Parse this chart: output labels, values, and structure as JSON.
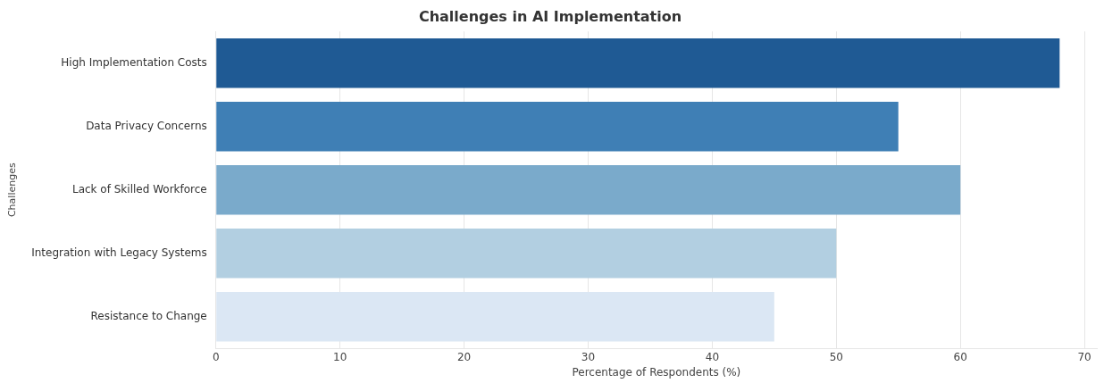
{
  "chart_data": {
    "type": "bar",
    "orientation": "horizontal",
    "title": "Challenges in AI Implementation",
    "xlabel": "Percentage of Respondents (%)",
    "ylabel": "Challenges",
    "categories": [
      "High Implementation Costs",
      "Data Privacy Concerns",
      "Lack of Skilled Workforce",
      "Integration with Legacy Systems",
      "Resistance to Change"
    ],
    "values": [
      68,
      55,
      60,
      50,
      45
    ],
    "colors": [
      "#1f5a94",
      "#3f7fb5",
      "#7aaacb",
      "#b2cfe1",
      "#dbe7f4"
    ],
    "xlim": [
      0,
      71
    ],
    "xticks": [
      0,
      10,
      20,
      30,
      40,
      50,
      60,
      70
    ],
    "grid": "x"
  }
}
